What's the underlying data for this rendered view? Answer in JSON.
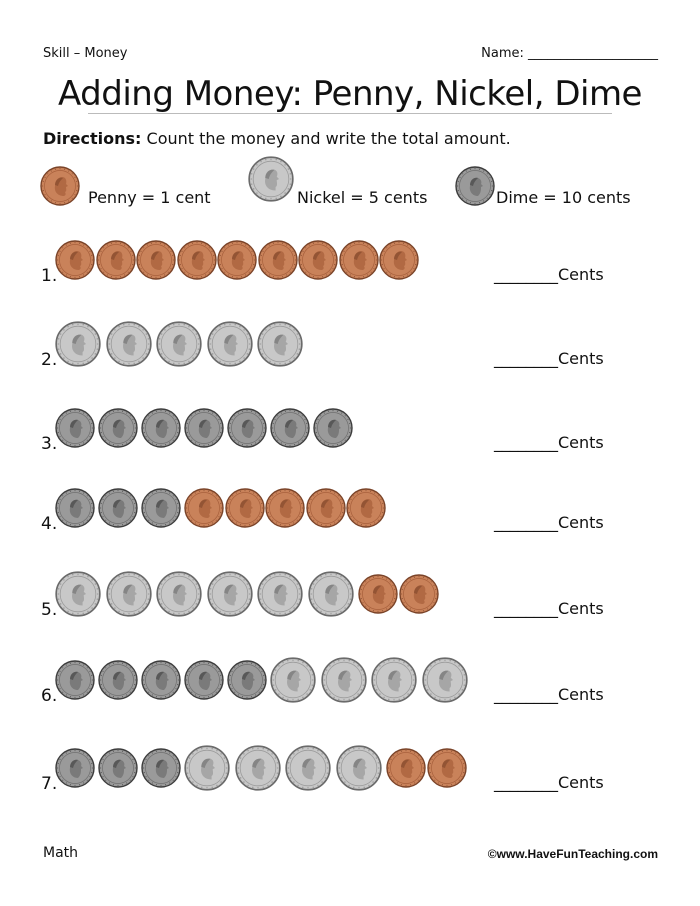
{
  "header": {
    "skill": "Skill – Money",
    "name_label": "Name: ____________________"
  },
  "title": "Adding Money: Penny, Nickel, Dime",
  "directions": {
    "label": "Directions:",
    "text": " Count the money and write the total amount."
  },
  "legend": [
    {
      "coin": "penny",
      "label": "Penny = 1 cent"
    },
    {
      "coin": "nickel",
      "label": "Nickel = 5 cents"
    },
    {
      "coin": "dime",
      "label": "Dime = 10 cents"
    }
  ],
  "problems": [
    {
      "number": "1.",
      "coins": {
        "dime": 0,
        "nickel": 0,
        "penny": 9
      },
      "answer_label": "________Cents"
    },
    {
      "number": "2.",
      "coins": {
        "dime": 0,
        "nickel": 5,
        "penny": 0
      },
      "answer_label": "________Cents"
    },
    {
      "number": "3.",
      "coins": {
        "dime": 7,
        "nickel": 0,
        "penny": 0
      },
      "answer_label": "________Cents"
    },
    {
      "number": "4.",
      "coins": {
        "dime": 3,
        "nickel": 0,
        "penny": 5
      },
      "answer_label": "________Cents"
    },
    {
      "number": "5.",
      "coins": {
        "dime": 0,
        "nickel": 6,
        "penny": 2
      },
      "answer_label": "________Cents"
    },
    {
      "number": "6.",
      "coins": {
        "dime": 5,
        "nickel": 4,
        "penny": 0
      },
      "answer_label": "________Cents"
    },
    {
      "number": "7.",
      "coins": {
        "dime": 3,
        "nickel": 4,
        "penny": 2
      },
      "answer_label": "________Cents"
    }
  ],
  "footer": {
    "subject": "Math",
    "copyright": "©www.HaveFunTeaching.com"
  },
  "colors": {
    "penny": "#c9825a",
    "nickel": "#c8c8c8",
    "dime": "#9a9a9a"
  }
}
